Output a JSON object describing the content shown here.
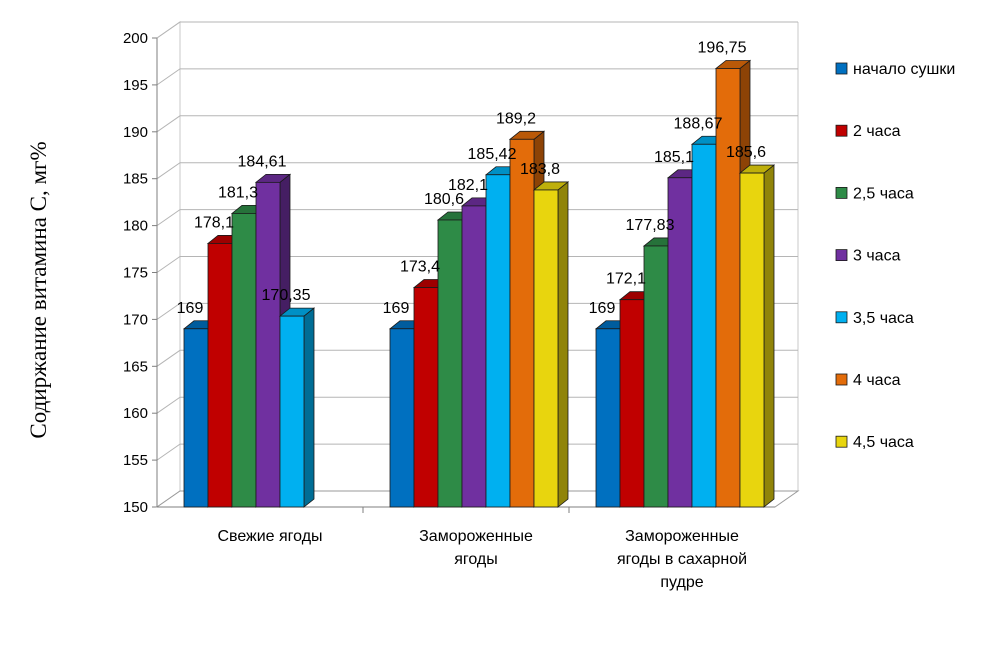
{
  "chart_data": {
    "type": "bar",
    "ylabel": "Содиржание витамина С, мг%",
    "xlabel": "",
    "ylim": [
      150,
      200
    ],
    "yticks": [
      150,
      155,
      160,
      165,
      170,
      175,
      180,
      185,
      190,
      195,
      200
    ],
    "grid": true,
    "legend_position": "right",
    "categories": [
      [
        "Свежие ягоды"
      ],
      [
        "Замороженные",
        "ягоды"
      ],
      [
        "Замороженные",
        "ягоды в сахарной",
        "пудре"
      ]
    ],
    "series": [
      {
        "name": "начало сушки",
        "color": "#0070C0",
        "values": [
          169,
          169,
          169
        ],
        "labels": [
          "169",
          "169",
          "169"
        ]
      },
      {
        "name": "2 часа",
        "color": "#C00000",
        "values": [
          178.1,
          173.4,
          172.1
        ],
        "labels": [
          "178,1",
          "173,4",
          "172,1"
        ]
      },
      {
        "name": "2,5 часа",
        "color": "#2E8B47",
        "values": [
          181.3,
          180.6,
          177.83
        ],
        "labels": [
          "181,3",
          "180,6",
          "177,83"
        ]
      },
      {
        "name": "3 часа",
        "color": "#7030A0",
        "values": [
          184.61,
          182.1,
          185.1
        ],
        "labels": [
          "184,61",
          "182,1",
          "185,1"
        ]
      },
      {
        "name": "3,5 часа",
        "color": "#00B0F0",
        "values": [
          170.35,
          185.42,
          188.67
        ],
        "labels": [
          "170,35",
          "185,42",
          "188,67"
        ]
      },
      {
        "name": "4 часа",
        "color": "#E36C0A",
        "values": [
          null,
          189.2,
          196.75
        ],
        "labels": [
          null,
          "189,2",
          "196,75"
        ]
      },
      {
        "name": "4,5 часа",
        "color": "#E8D50E",
        "values": [
          null,
          183.8,
          185.6
        ],
        "labels": [
          null,
          "183,8",
          "185,6"
        ]
      }
    ]
  }
}
